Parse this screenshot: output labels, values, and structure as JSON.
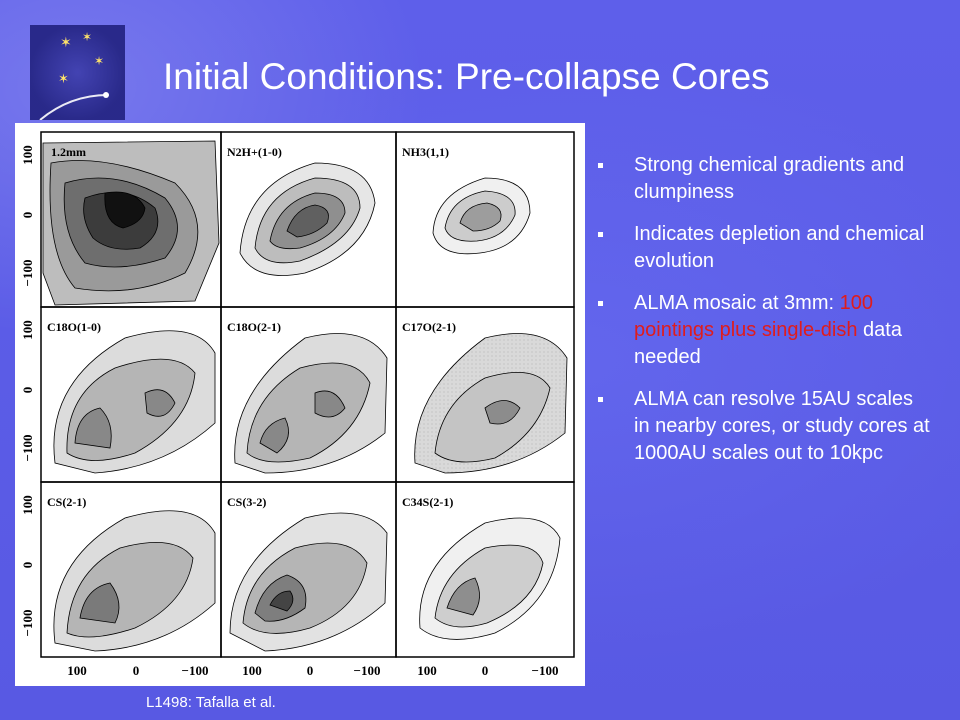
{
  "slide": {
    "title": "Initial Conditions: Pre-collapse Cores",
    "caption": "L1498: Tafalla et al.",
    "colors": {
      "background": "#5b5ce8",
      "text": "#ffffff",
      "highlight": "#e01c1c"
    },
    "logo_icon": "star-cluster-icon"
  },
  "bullets": [
    {
      "text": "Strong chemical gradients and clumpiness"
    },
    {
      "text": "Indicates depletion and chemical evolution"
    },
    {
      "pre": "ALMA mosaic at 3mm: ",
      "highlight": "100 pointings plus single-dish",
      "post": " data needed"
    },
    {
      "text": "ALMA can resolve 15AU scales in nearby cores, or study cores at 1000AU scales out to 10kpc"
    }
  ],
  "figure": {
    "panels": [
      "1.2mm",
      "N2H+(1-0)",
      "NH3(1,1)",
      "C18O(1-0)",
      "C18O(2-1)",
      "C17O(2-1)",
      "CS(2-1)",
      "CS(3-2)",
      "C34S(2-1)"
    ],
    "y_ticks": [
      "100",
      "0",
      "−100"
    ],
    "x_ticks": [
      "100",
      "0",
      "−100"
    ]
  }
}
